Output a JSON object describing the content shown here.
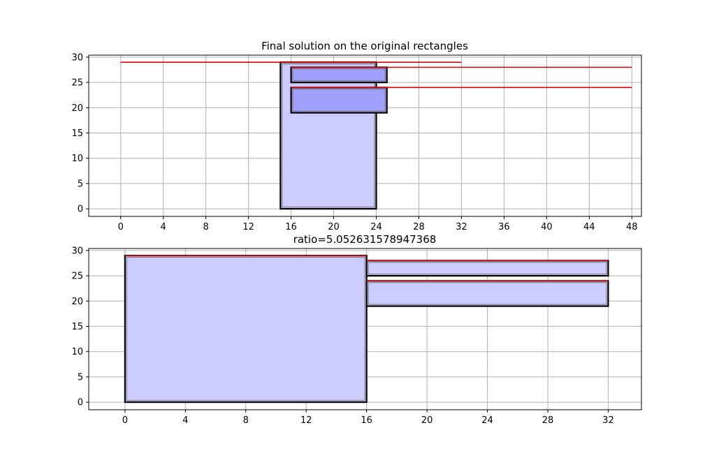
{
  "colors": {
    "rect_fill": "#ccccff",
    "rect_fill_dark": "#a0a0ff",
    "rect_edge": "#000000",
    "red_line": "#e00000",
    "grid": "#b0b0b0"
  },
  "chart_data": [
    {
      "type": "rectangles",
      "title": "Final solution on the original rectangles",
      "xlim": [
        -3,
        48.9
      ],
      "ylim": [
        -1.5,
        30.4
      ],
      "xticks": [
        0,
        4,
        8,
        12,
        16,
        20,
        24,
        28,
        32,
        36,
        40,
        44,
        48
      ],
      "yticks": [
        0,
        5,
        10,
        15,
        20,
        25,
        30
      ],
      "grid": true,
      "rectangles": [
        {
          "x0": 15,
          "y0": 0,
          "x1": 24,
          "y1": 29,
          "fill": "light"
        },
        {
          "x0": 16,
          "y0": 19,
          "x1": 25,
          "y1": 24,
          "fill": "dark"
        },
        {
          "x0": 16,
          "y0": 25,
          "x1": 25,
          "y1": 28,
          "fill": "dark"
        }
      ],
      "lines": [
        {
          "x0": 0,
          "x1": 32,
          "y": 29
        },
        {
          "x0": 16,
          "x1": 48,
          "y": 28
        },
        {
          "x0": 16,
          "x1": 48,
          "y": 24
        }
      ]
    },
    {
      "type": "rectangles",
      "title": "ratio=5.052631578947368",
      "xlim": [
        -2.4,
        34.2
      ],
      "ylim": [
        -1.5,
        30.4
      ],
      "xticks": [
        0,
        4,
        8,
        12,
        16,
        20,
        24,
        28,
        32
      ],
      "yticks": [
        0,
        5,
        10,
        15,
        20,
        25,
        30
      ],
      "grid": true,
      "rectangles": [
        {
          "x0": 0,
          "y0": 0,
          "x1": 16,
          "y1": 29,
          "fill": "light"
        },
        {
          "x0": 16,
          "y0": 19,
          "x1": 32,
          "y1": 24,
          "fill": "light"
        },
        {
          "x0": 16,
          "y0": 25,
          "x1": 32,
          "y1": 28,
          "fill": "light"
        }
      ],
      "lines": [
        {
          "x0": 0,
          "x1": 16,
          "y": 29
        },
        {
          "x0": 16,
          "x1": 32,
          "y": 28
        },
        {
          "x0": 16,
          "x1": 32,
          "y": 24
        }
      ]
    }
  ]
}
